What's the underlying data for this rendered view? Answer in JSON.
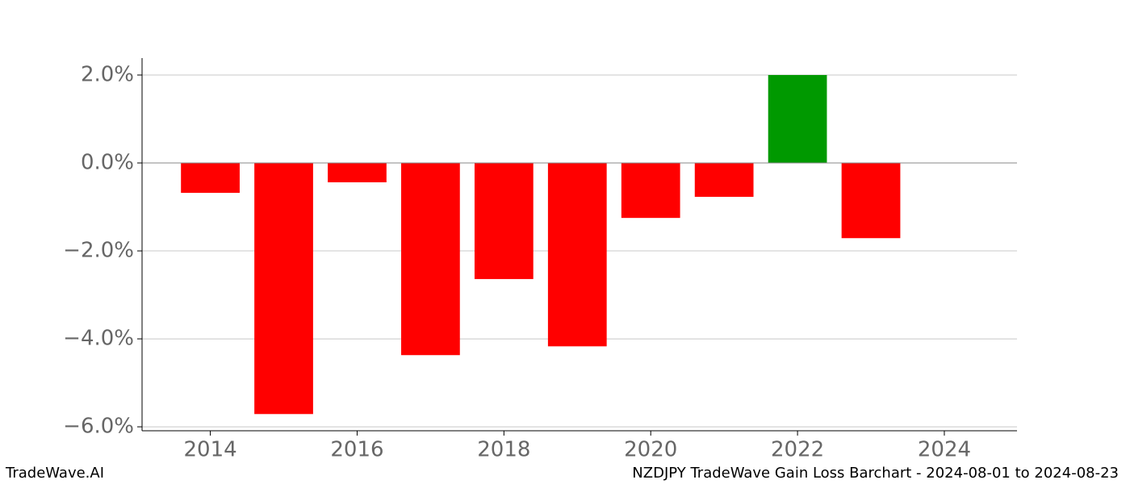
{
  "chart_data": {
    "type": "bar",
    "x": [
      2014,
      2015,
      2016,
      2017,
      2018,
      2019,
      2020,
      2021,
      2022,
      2023
    ],
    "values": [
      -0.68,
      -5.71,
      -0.44,
      -4.37,
      -2.64,
      -4.17,
      -1.25,
      -0.77,
      2.0,
      -1.71
    ],
    "colors": [
      "#ff0000",
      "#ff0000",
      "#ff0000",
      "#ff0000",
      "#ff0000",
      "#ff0000",
      "#ff0000",
      "#ff0000",
      "#009900",
      "#ff0000"
    ],
    "xlim": [
      2013.07,
      2024.99
    ],
    "xticks": [
      2014,
      2016,
      2018,
      2020,
      2022,
      2024
    ],
    "ylim": [
      -6.09,
      2.385
    ],
    "yticks": [
      {
        "value": 2.0,
        "label": "2.0%"
      },
      {
        "value": 0.0,
        "label": "0.0%"
      },
      {
        "value": -2.0,
        "label": "−2.0%"
      },
      {
        "value": -4.0,
        "label": "−4.0%"
      },
      {
        "value": -6.0,
        "label": "−6.0%"
      }
    ],
    "grid": true,
    "footer_left": "TradeWave.AI",
    "footer_right": "NZDJPY TradeWave Gain Loss Barchart - 2024-08-01 to 2024-08-23"
  }
}
